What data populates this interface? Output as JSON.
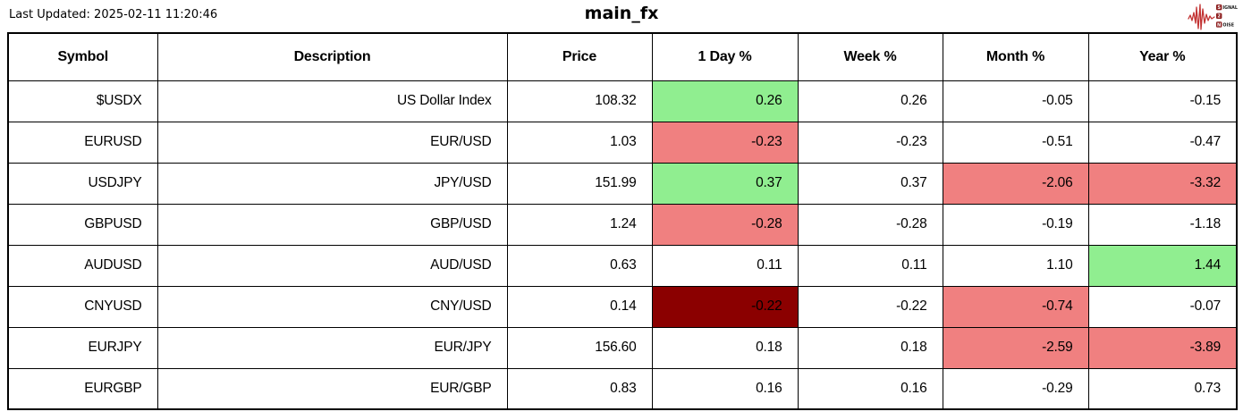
{
  "header": {
    "last_updated": "Last Updated: 2025-02-11 11:20:46",
    "title": "main_fx"
  },
  "logo": {
    "name": "signal-2-noise-logo",
    "badge_s": "S",
    "word_signal_rest": "IGNAL",
    "badge_2": "2",
    "badge_n": "N",
    "word_noise_rest": "OISE"
  },
  "colors": {
    "positive": "#90ee90",
    "negative": "#f08080",
    "strong_negative": "#8b0000",
    "border": "#000000",
    "logo_red": "#c23232",
    "logo_badge": "#8b1c1c"
  },
  "table": {
    "column_keys": [
      "symbol",
      "description",
      "price",
      "day",
      "week",
      "month",
      "year"
    ],
    "columns": [
      "Symbol",
      "Description",
      "Price",
      "1 Day %",
      "Week %",
      "Month %",
      "Year %"
    ],
    "rows": [
      {
        "cells": [
          {
            "text": "$USDX"
          },
          {
            "text": "US Dollar Index"
          },
          {
            "text": "108.32"
          },
          {
            "text": "0.26",
            "bg": "positive"
          },
          {
            "text": "0.26"
          },
          {
            "text": "-0.05"
          },
          {
            "text": "-0.15"
          }
        ]
      },
      {
        "cells": [
          {
            "text": "EURUSD"
          },
          {
            "text": "EUR/USD"
          },
          {
            "text": "1.03"
          },
          {
            "text": "-0.23",
            "bg": "negative"
          },
          {
            "text": "-0.23"
          },
          {
            "text": "-0.51"
          },
          {
            "text": "-0.47"
          }
        ]
      },
      {
        "cells": [
          {
            "text": "USDJPY"
          },
          {
            "text": "JPY/USD"
          },
          {
            "text": "151.99"
          },
          {
            "text": "0.37",
            "bg": "positive"
          },
          {
            "text": "0.37"
          },
          {
            "text": "-2.06",
            "bg": "negative"
          },
          {
            "text": "-3.32",
            "bg": "negative"
          }
        ]
      },
      {
        "cells": [
          {
            "text": "GBPUSD"
          },
          {
            "text": "GBP/USD"
          },
          {
            "text": "1.24"
          },
          {
            "text": "-0.28",
            "bg": "negative"
          },
          {
            "text": "-0.28"
          },
          {
            "text": "-0.19"
          },
          {
            "text": "-1.18"
          }
        ]
      },
      {
        "cells": [
          {
            "text": "AUDUSD"
          },
          {
            "text": "AUD/USD"
          },
          {
            "text": "0.63"
          },
          {
            "text": "0.11"
          },
          {
            "text": "0.11"
          },
          {
            "text": "1.10"
          },
          {
            "text": "1.44",
            "bg": "positive"
          }
        ]
      },
      {
        "cells": [
          {
            "text": "CNYUSD"
          },
          {
            "text": "CNY/USD"
          },
          {
            "text": "0.14"
          },
          {
            "text": "-0.22",
            "bg": "strong_negative"
          },
          {
            "text": "-0.22"
          },
          {
            "text": "-0.74",
            "bg": "negative"
          },
          {
            "text": "-0.07"
          }
        ]
      },
      {
        "cells": [
          {
            "text": "EURJPY"
          },
          {
            "text": "EUR/JPY"
          },
          {
            "text": "156.60"
          },
          {
            "text": "0.18"
          },
          {
            "text": "0.18"
          },
          {
            "text": "-2.59",
            "bg": "negative"
          },
          {
            "text": "-3.89",
            "bg": "negative"
          }
        ]
      },
      {
        "cells": [
          {
            "text": "EURGBP"
          },
          {
            "text": "EUR/GBP"
          },
          {
            "text": "0.83"
          },
          {
            "text": "0.16"
          },
          {
            "text": "0.16"
          },
          {
            "text": "-0.29"
          },
          {
            "text": "0.73"
          }
        ]
      }
    ]
  },
  "chart_data": {
    "type": "table",
    "title": "main_fx",
    "subtitle": "Last Updated: 2025-02-11 11:20:46",
    "columns": [
      "Symbol",
      "Description",
      "Price",
      "1 Day %",
      "Week %",
      "Month %",
      "Year %"
    ],
    "rows": [
      [
        "$USDX",
        "US Dollar Index",
        108.32,
        0.26,
        0.26,
        -0.05,
        -0.15
      ],
      [
        "EURUSD",
        "EUR/USD",
        1.03,
        -0.23,
        -0.23,
        -0.51,
        -0.47
      ],
      [
        "USDJPY",
        "JPY/USD",
        151.99,
        0.37,
        0.37,
        -2.06,
        -3.32
      ],
      [
        "GBPUSD",
        "GBP/USD",
        1.24,
        -0.28,
        -0.28,
        -0.19,
        -1.18
      ],
      [
        "AUDUSD",
        "AUD/USD",
        0.63,
        0.11,
        0.11,
        1.1,
        1.44
      ],
      [
        "CNYUSD",
        "CNY/USD",
        0.14,
        -0.22,
        -0.22,
        -0.74,
        -0.07
      ],
      [
        "EURJPY",
        "EUR/JPY",
        156.6,
        0.18,
        0.18,
        -2.59,
        -3.89
      ],
      [
        "EURGBP",
        "EUR/GBP",
        0.83,
        0.16,
        0.16,
        -0.29,
        0.73
      ]
    ],
    "cell_highlights": [
      {
        "row": "$USDX",
        "column": "1 Day %",
        "color": "green"
      },
      {
        "row": "EURUSD",
        "column": "1 Day %",
        "color": "red"
      },
      {
        "row": "USDJPY",
        "column": "1 Day %",
        "color": "green"
      },
      {
        "row": "USDJPY",
        "column": "Month %",
        "color": "red"
      },
      {
        "row": "USDJPY",
        "column": "Year %",
        "color": "red"
      },
      {
        "row": "GBPUSD",
        "column": "1 Day %",
        "color": "red"
      },
      {
        "row": "AUDUSD",
        "column": "Year %",
        "color": "green"
      },
      {
        "row": "CNYUSD",
        "column": "1 Day %",
        "color": "dark_red"
      },
      {
        "row": "CNYUSD",
        "column": "Month %",
        "color": "red"
      },
      {
        "row": "EURJPY",
        "column": "Month %",
        "color": "red"
      },
      {
        "row": "EURJPY",
        "column": "Year %",
        "color": "red"
      }
    ],
    "legend_position": "none",
    "grid": true
  }
}
